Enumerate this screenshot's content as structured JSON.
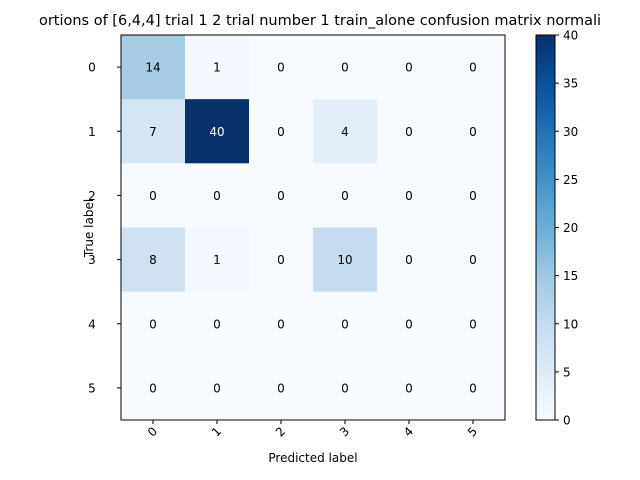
{
  "chart_data": {
    "type": "heatmap",
    "title": "ortions of [6,4,4] trial 1 2 trial number 1 train_alone confusion matrix normali",
    "xlabel": "Predicted label",
    "ylabel": "True label",
    "x_categories": [
      "0",
      "1",
      "2",
      "3",
      "4",
      "5"
    ],
    "y_categories": [
      "0",
      "1",
      "2",
      "3",
      "4",
      "5"
    ],
    "values": [
      [
        14,
        1,
        0,
        0,
        0,
        0
      ],
      [
        7,
        40,
        0,
        4,
        0,
        0
      ],
      [
        0,
        0,
        0,
        0,
        0,
        0
      ],
      [
        8,
        1,
        0,
        10,
        0,
        0
      ],
      [
        0,
        0,
        0,
        0,
        0,
        0
      ],
      [
        0,
        0,
        0,
        0,
        0,
        0
      ]
    ],
    "colormap": "Blues",
    "vmin": 0,
    "vmax": 40,
    "colorbar_ticks": [
      0,
      5,
      10,
      15,
      20,
      25,
      30,
      35,
      40
    ],
    "colors": {
      "text_light": "#ffffff",
      "text_dark": "#000000"
    }
  }
}
